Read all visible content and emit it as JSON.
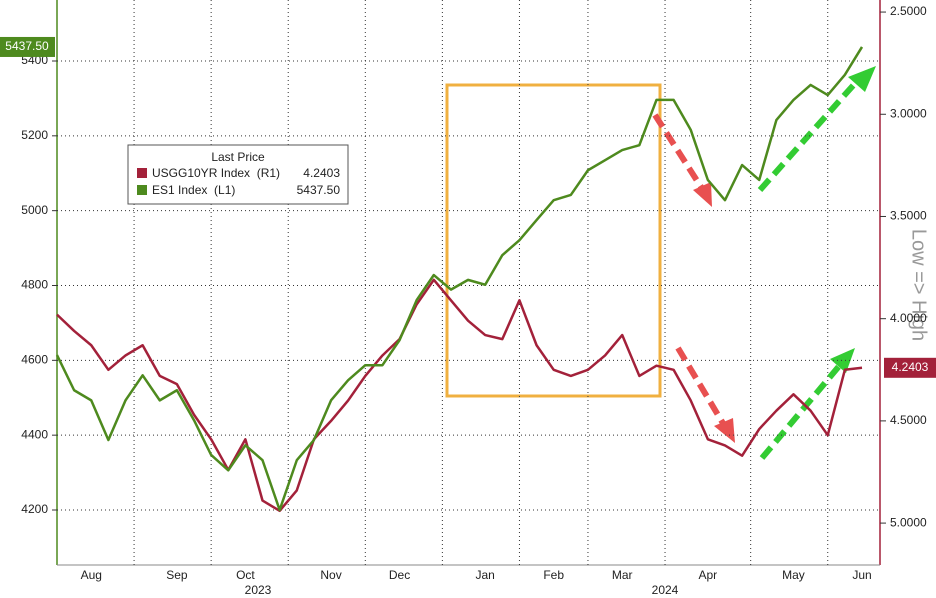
{
  "chart_data": {
    "type": "line",
    "categories": [
      null,
      null,
      "Aug",
      null,
      null,
      null,
      null,
      "Sep",
      null,
      null,
      null,
      "Oct",
      null,
      null,
      null,
      null,
      "Nov",
      null,
      null,
      null,
      "Dec",
      null,
      null,
      null,
      null,
      "Jan",
      null,
      null,
      null,
      "Feb",
      null,
      null,
      null,
      "Mar",
      null,
      null,
      null,
      null,
      "Apr",
      null,
      null,
      null,
      null,
      "May",
      null,
      null,
      null,
      "Jun"
    ],
    "years": [
      "2023",
      "2024"
    ],
    "legend_title": "Last Price",
    "annotation": "Low => High",
    "series": [
      {
        "name": "USGG10YR Index  (R1)",
        "color": "#a3213a",
        "axis": "y2",
        "last_label": "4.2403",
        "values": [
          3.98,
          4.06,
          4.13,
          4.25,
          4.18,
          4.13,
          4.28,
          4.32,
          4.47,
          4.59,
          4.74,
          4.59,
          4.89,
          4.94,
          4.84,
          4.59,
          4.5,
          4.4,
          4.28,
          4.18,
          4.1,
          3.93,
          3.81,
          3.91,
          4.01,
          4.08,
          4.1,
          3.91,
          4.13,
          4.25,
          4.28,
          4.25,
          4.18,
          4.08,
          4.28,
          4.23,
          4.25,
          4.4,
          4.59,
          4.62,
          4.67,
          4.54,
          4.45,
          4.37,
          4.45,
          4.57,
          4.25,
          4.2403
        ]
      },
      {
        "name": "ES1 Index  (L1)",
        "color": "#4e8a1e",
        "last_label": "5437.50",
        "values": [
          4614,
          4520,
          4493,
          4387,
          4493,
          4560,
          4493,
          4520,
          4440,
          4347,
          4306,
          4373,
          4333,
          4200,
          4333,
          4387,
          4493,
          4547,
          4587,
          4587,
          4654,
          4761,
          4828,
          4789,
          4815,
          4802,
          4881,
          4921,
          4975,
          5028,
          5042,
          5108,
          5135,
          5162,
          5175,
          5296,
          5296,
          5216,
          5082,
          5028,
          5122,
          5082,
          5242,
          5296,
          5336,
          5309,
          5363,
          5437.5
        ]
      }
    ],
    "ylim": [
      4053,
      5563
    ],
    "yticks": [
      4200,
      4400,
      4600,
      4800,
      5000,
      5200,
      5400
    ],
    "y2lim": [
      5.205,
      2.441
    ],
    "y2ticks": [
      {
        "value": 2.5,
        "label": "2.5000"
      },
      {
        "value": 3.0,
        "label": "3.0000"
      },
      {
        "value": 3.5,
        "label": "3.5000"
      },
      {
        "value": 4.0,
        "label": "4.0000"
      },
      {
        "value": 4.5,
        "label": "4.5000"
      },
      {
        "value": 5.0,
        "label": "5.0000"
      }
    ],
    "grid": true
  }
}
